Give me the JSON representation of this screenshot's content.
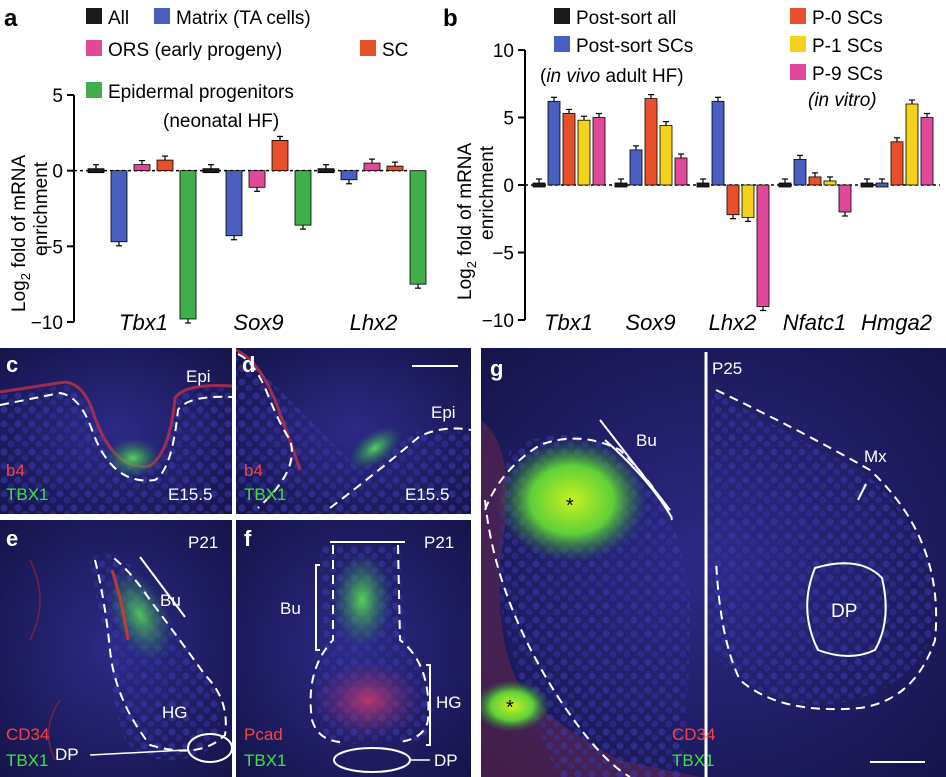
{
  "panel_letters": [
    "a",
    "b",
    "c",
    "d",
    "e",
    "f",
    "g"
  ],
  "colors": {
    "all": "#1a1a1a",
    "matrix": "#4a5ebf",
    "ors": "#e0489a",
    "sc": "#e8502c",
    "epidermal": "#3fae4b",
    "postsort_all": "#1a1a1a",
    "postsort_sc": "#4a5ebf",
    "p0": "#e8502c",
    "p1": "#f2d21b",
    "p9": "#e0489a",
    "micro_bg": "#1c1b5e",
    "micro_red": "#d8302e",
    "micro_green": "#3fd24a"
  },
  "chart_data": [
    {
      "type": "bar",
      "panel": "a",
      "ylabel_prefix": "Log",
      "ylabel_sub": "2",
      "ylabel_suffix": " fold of mRNA",
      "ylabel_line2": "enrichment",
      "ylim": [
        -10,
        5
      ],
      "yticks": [
        5,
        0,
        -5,
        -10
      ],
      "categories": [
        "Tbx1",
        "Sox9",
        "Lhx2"
      ],
      "legend": {
        "all": "All",
        "matrix": "Matrix (TA cells)",
        "ors": "ORS (early progeny)",
        "sc": "SC",
        "epidermal": "Epidermal progenitors",
        "note": "(neonatal HF)"
      },
      "series": [
        {
          "key": "all",
          "name": "All",
          "values": [
            0,
            0,
            0
          ]
        },
        {
          "key": "matrix",
          "name": "Matrix (TA cells)",
          "values": [
            -4.7,
            -4.3,
            -0.6
          ]
        },
        {
          "key": "ors",
          "name": "ORS (early progeny)",
          "values": [
            0.4,
            -1.1,
            0.5
          ]
        },
        {
          "key": "sc",
          "name": "SC",
          "values": [
            0.7,
            2.0,
            0.3
          ]
        },
        {
          "key": "epidermal",
          "name": "Epidermal progenitors",
          "values": [
            -9.8,
            -3.6,
            -7.5
          ]
        }
      ]
    },
    {
      "type": "bar",
      "panel": "b",
      "ylabel_prefix": "Log",
      "ylabel_sub": "2",
      "ylabel_suffix": " fold of mRNA",
      "ylabel_line2": "enrichment",
      "ylim": [
        -10,
        10
      ],
      "yticks": [
        10,
        5,
        0,
        -5,
        -10
      ],
      "categories": [
        "Tbx1",
        "Sox9",
        "Lhx2",
        "Nfatc1",
        "Hmga2"
      ],
      "legend": {
        "postsort_all": "Post-sort all",
        "postsort_sc": "Post-sort SCs",
        "invivo_it": "in vivo",
        "invivo_rest": " adult HF)",
        "invivo_open": "(",
        "p0": "P-0 SCs",
        "p1": "P-1 SCs",
        "p9": "P-9 SCs",
        "invitro": "(in vitro)"
      },
      "series": [
        {
          "key": "postsort_all",
          "name": "Post-sort all",
          "values": [
            0,
            0,
            0.1,
            0,
            0
          ]
        },
        {
          "key": "postsort_sc",
          "name": "Post-sort SCs",
          "values": [
            6.2,
            2.6,
            6.2,
            1.9,
            0.1
          ]
        },
        {
          "key": "p0",
          "name": "P-0 SCs",
          "values": [
            5.3,
            6.4,
            -2.2,
            0.6,
            3.2
          ]
        },
        {
          "key": "p1",
          "name": "P-1 SCs",
          "values": [
            4.8,
            4.4,
            -2.4,
            0.3,
            6.0
          ]
        },
        {
          "key": "p9",
          "name": "P-9 SCs",
          "values": [
            5.0,
            2.0,
            -9.0,
            -2.0,
            5.0
          ]
        }
      ]
    }
  ],
  "micrographs": {
    "c": {
      "labels": [
        "Epi",
        "E15.5"
      ],
      "stain_red": "b4",
      "stain_green": "TBX1"
    },
    "d": {
      "labels": [
        "Epi",
        "E15.5"
      ],
      "stain_red": "b4",
      "stain_green": "TBX1"
    },
    "e": {
      "labels": [
        "P21",
        "Bu",
        "HG",
        "DP"
      ],
      "stain_red": "CD34",
      "stain_green": "TBX1"
    },
    "f": {
      "labels": [
        "P21",
        "Bu",
        "HG",
        "DP"
      ],
      "stain_red": "Pcad",
      "stain_green": "TBX1"
    },
    "g": {
      "labels": [
        "P25",
        "Bu",
        "Mx",
        "DP",
        "*",
        "*"
      ],
      "stain_red": "CD34",
      "stain_green": "TBX1"
    }
  }
}
